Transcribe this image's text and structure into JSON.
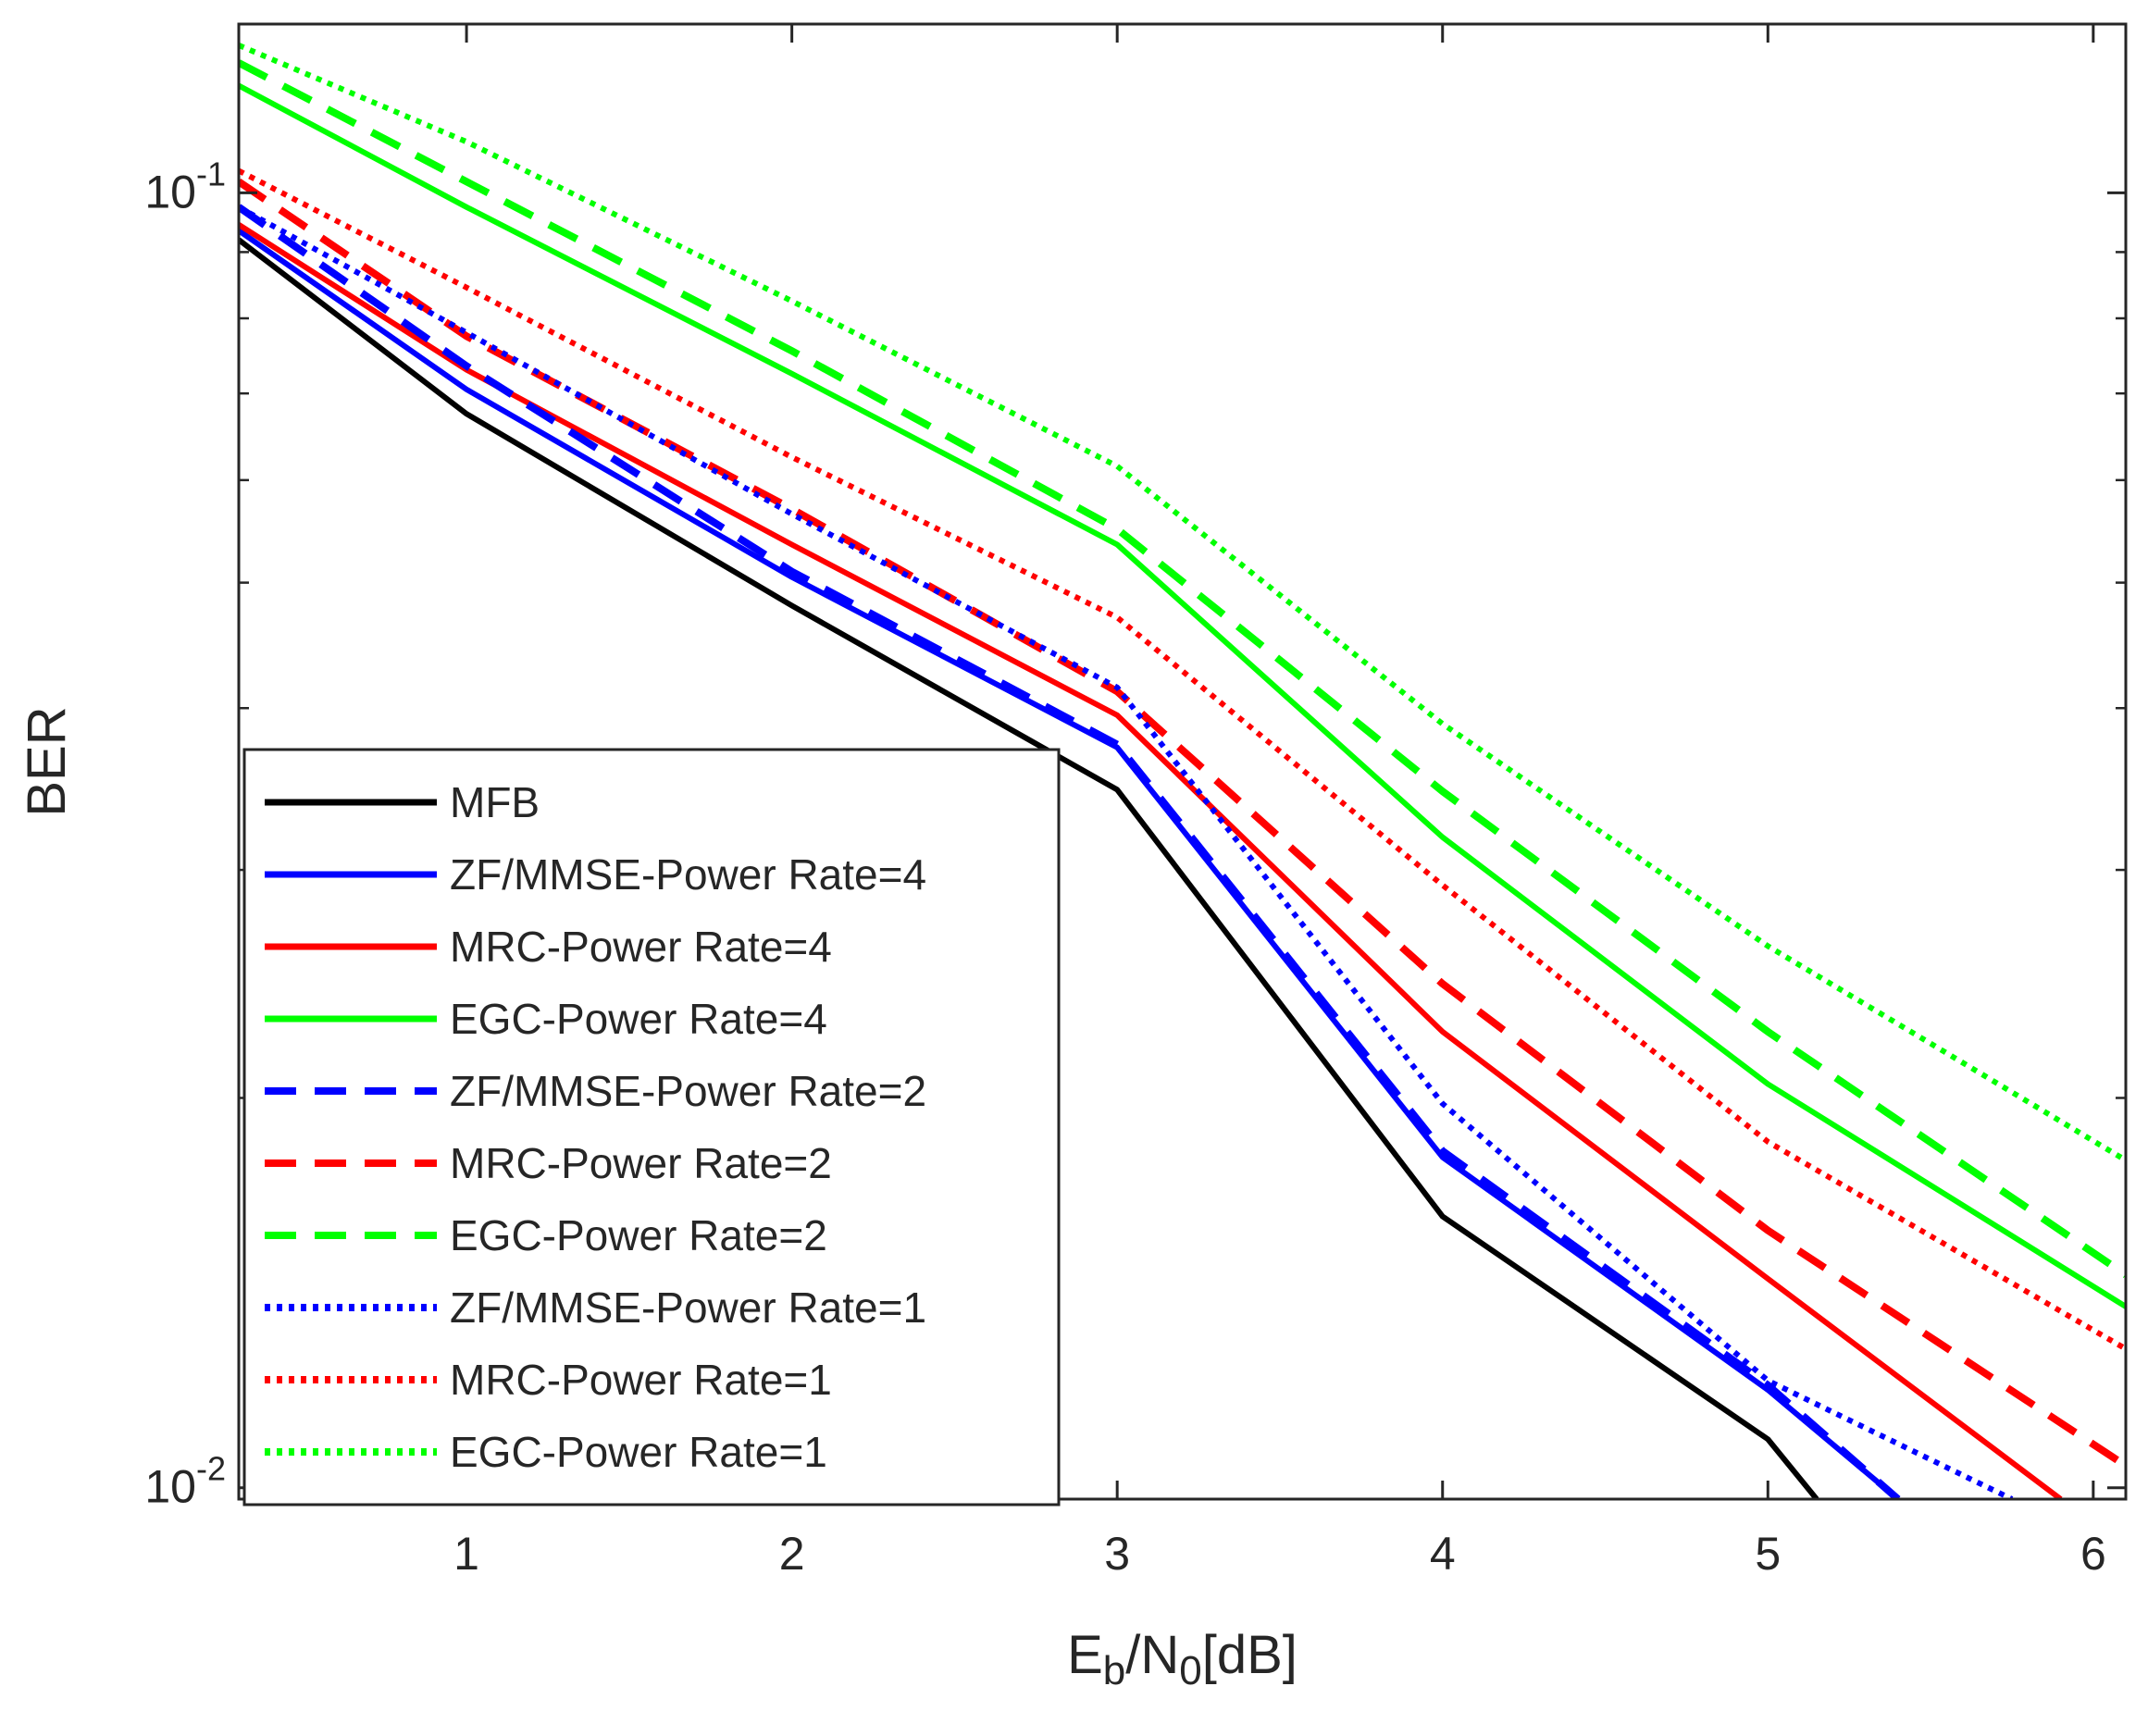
{
  "chart_data": {
    "type": "line",
    "title": "",
    "xlabel": {
      "main": "E",
      "sub1": "b",
      "mid": "/N",
      "sub2": "0",
      "tail": "[dB]"
    },
    "ylabel": "BER",
    "xscale": "linear",
    "yscale": "log",
    "xlim": [
      0.3,
      6.1
    ],
    "ylim": [
      0.0098,
      0.135
    ],
    "xticks": [
      1,
      2,
      3,
      4,
      5,
      6
    ],
    "xtick_labels": [
      "1",
      "2",
      "3",
      "4",
      "5",
      "6"
    ],
    "yticks": [
      0.01,
      0.1
    ],
    "ytick_labels": [
      {
        "base": "10",
        "exp": "-2"
      },
      {
        "base": "10",
        "exp": "-1"
      }
    ],
    "grid": false,
    "legend_position": "bottom-left",
    "series": [
      {
        "name": "MFB",
        "color": "#000000",
        "style": "solid",
        "x": [
          0.3,
          1,
          2,
          3,
          4,
          5,
          5.15
        ],
        "y": [
          0.092,
          0.0675,
          0.048,
          0.0346,
          0.0162,
          0.0109,
          0.0098
        ]
      },
      {
        "name": "ZF/MMSE-Power Rate=4",
        "color": "#0000ff",
        "style": "solid",
        "x": [
          0.3,
          1,
          2,
          3,
          4,
          5,
          5.4
        ],
        "y": [
          0.0935,
          0.0705,
          0.0505,
          0.0373,
          0.018,
          0.0119,
          0.0098
        ]
      },
      {
        "name": "MRC-Power Rate=4",
        "color": "#ff0000",
        "style": "solid",
        "x": [
          0.3,
          1,
          2,
          3,
          4,
          5,
          5.9
        ],
        "y": [
          0.0945,
          0.073,
          0.0535,
          0.0395,
          0.0225,
          0.0145,
          0.0098
        ]
      },
      {
        "name": "EGC-Power Rate=4",
        "color": "#00ff00",
        "style": "solid",
        "x": [
          0.3,
          1,
          2,
          3,
          4,
          5,
          6.1
        ],
        "y": [
          0.121,
          0.0975,
          0.0725,
          0.0535,
          0.0318,
          0.0205,
          0.0138
        ]
      },
      {
        "name": "ZF/MMSE-Power Rate=2",
        "color": "#0000ff",
        "style": "dashed",
        "x": [
          0.3,
          1,
          2,
          3,
          4,
          5,
          5.4
        ],
        "y": [
          0.0975,
          0.0735,
          0.051,
          0.0375,
          0.0182,
          0.012,
          0.0098
        ]
      },
      {
        "name": "MRC-Power Rate=2",
        "color": "#ff0000",
        "style": "dashed",
        "x": [
          0.3,
          1,
          2,
          3,
          4,
          5,
          6.1
        ],
        "y": [
          0.102,
          0.0775,
          0.057,
          0.0412,
          0.0245,
          0.0158,
          0.0104
        ]
      },
      {
        "name": "EGC-Power Rate=2",
        "color": "#00ff00",
        "style": "dashed",
        "x": [
          0.3,
          1,
          2,
          3,
          4,
          5,
          6.1
        ],
        "y": [
          0.126,
          0.102,
          0.0755,
          0.055,
          0.0345,
          0.0225,
          0.0146
        ]
      },
      {
        "name": "ZF/MMSE-Power Rate=1",
        "color": "#0000ff",
        "style": "dotted",
        "x": [
          0.3,
          1,
          2,
          3,
          4,
          5,
          5.75
        ],
        "y": [
          0.0975,
          0.078,
          0.0565,
          0.0415,
          0.0198,
          0.0121,
          0.0098
        ]
      },
      {
        "name": "MRC-Power Rate=1",
        "color": "#ff0000",
        "style": "dotted",
        "x": [
          0.3,
          1,
          2,
          3,
          4,
          5,
          6.1
        ],
        "y": [
          0.104,
          0.0845,
          0.0625,
          0.047,
          0.0292,
          0.0185,
          0.0128
        ]
      },
      {
        "name": "EGC-Power Rate=1",
        "color": "#00ff00",
        "style": "dotted",
        "x": [
          0.3,
          1,
          2,
          3,
          4,
          5,
          6.1
        ],
        "y": [
          0.13,
          0.1095,
          0.0825,
          0.0615,
          0.0389,
          0.0262,
          0.0179
        ]
      }
    ]
  }
}
